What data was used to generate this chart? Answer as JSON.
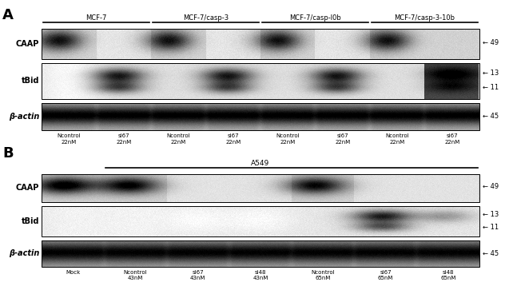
{
  "panel_A": {
    "label": "A",
    "cell_line_labels": [
      "MCF-7",
      "MCF-7/casp-3",
      "MCF-7/casp-l0b",
      "MCF-7/casp-3-10b"
    ],
    "row_labels": [
      "CAAP",
      "tBid",
      "β-actin"
    ],
    "band_annotations": [
      "← 49",
      "← 13",
      "← 11",
      "← 45"
    ],
    "n_lanes": 8,
    "lane_labels": [
      "Ncontrol\n22nM",
      "si67\n22nM",
      "Ncontrol\n22nM",
      "si67\n22nM",
      "Ncontrol\n22nM",
      "si67\n22nM",
      "Ncontrol\n22nM",
      "si67\n22nM"
    ]
  },
  "panel_B": {
    "label": "B",
    "cell_line_labels": [
      "A549"
    ],
    "row_labels": [
      "CAAP",
      "tBid",
      "β-actin"
    ],
    "band_annotations": [
      "← 49",
      "← 13",
      "← 11",
      "← 45"
    ],
    "n_lanes": 7,
    "lane_labels": [
      "Mock",
      "Ncontrol\n43nM",
      "si67\n43nM",
      "si48\n43nM",
      "Ncontrol\n65nM",
      "si67\n65nM",
      "si48\n65nM"
    ]
  },
  "bg_color": "#ffffff",
  "font_color": "#000000"
}
